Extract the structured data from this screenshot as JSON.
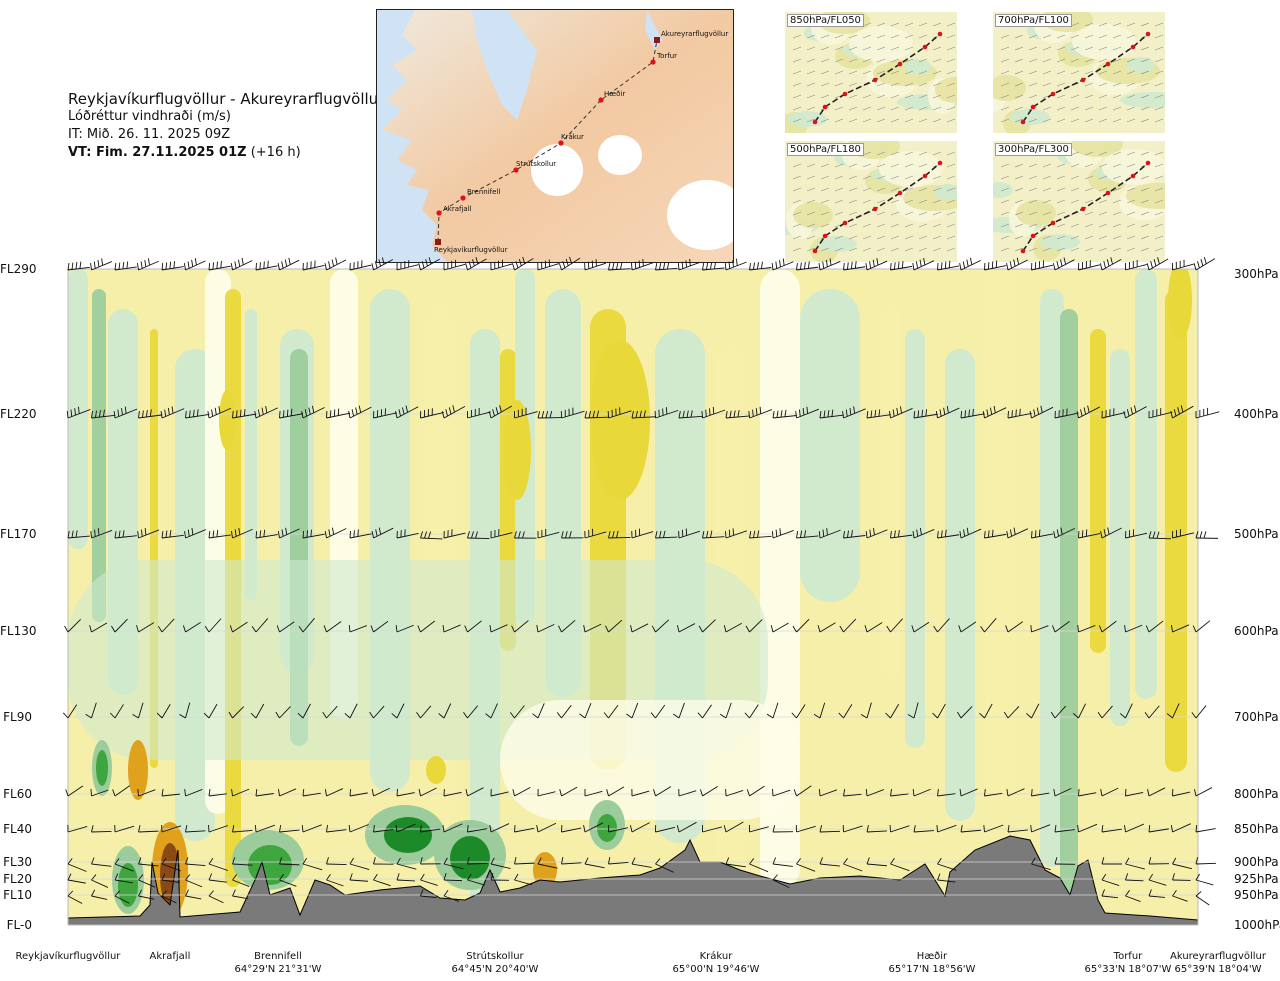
{
  "header": {
    "route": "Reykjavíkurflugvöllur - Akureyrarflugvöllur",
    "variable": "Lóðréttur vindhraði (m/s)",
    "it": "IT: Mið. 26. 11. 2025 09Z",
    "vt_bold": "VT: Fim. 27.11.2025 01Z",
    "vt_rest": " (+16 h)"
  },
  "map": {
    "route_points": [
      {
        "name": "Reykjavíkurflugvöllur"
      },
      {
        "name": "Akrafjall"
      },
      {
        "name": "Brennifell"
      },
      {
        "name": "Strútskollur"
      },
      {
        "name": "Krákur"
      },
      {
        "name": "Hæðir"
      },
      {
        "name": "Torfur"
      },
      {
        "name": "Akureyrarflugvöllur"
      }
    ]
  },
  "thumbnails": [
    {
      "label": "850hPa/FL050"
    },
    {
      "label": "700hPa/FL100"
    },
    {
      "label": "500hPa/FL180"
    },
    {
      "label": "300hPa/FL300"
    }
  ],
  "colors": {
    "strong_down": "#8a4a14",
    "down": "#e0a11c",
    "weak_down": "#e9d83a",
    "slight_down": "#f5efaa",
    "neutral": "#fdfde8",
    "slight_up": "#cfe9cf",
    "up": "#9ccc9c",
    "strong_up": "#3fa53f",
    "very_strong_up": "#1d8a2a",
    "terrain": "#7a7a7a"
  },
  "chart_data": {
    "type": "heatmap",
    "title": "Lóðréttur vindhraði (m/s)",
    "x_axis": {
      "locations": [
        {
          "name": "Reykjavíkurflugvöllur",
          "coord": ""
        },
        {
          "name": "Akrafjall",
          "coord": ""
        },
        {
          "name": "Brennifell",
          "coord": "64°29'N 21°31'W"
        },
        {
          "name": "Strútskollur",
          "coord": "64°45'N 20°40'W"
        },
        {
          "name": "Krákur",
          "coord": "65°00'N 19°46'W"
        },
        {
          "name": "Hæðir",
          "coord": "65°17'N 18°56'W"
        },
        {
          "name": "Torfur",
          "coord": "65°33'N 18°07'W"
        },
        {
          "name": "Akureyrarflugvöllur",
          "coord": "65°39'N 18°04'W"
        }
      ]
    },
    "y_axis_left": [
      "FL290",
      "FL220",
      "FL170",
      "FL130",
      "FL90",
      "FL60",
      "FL40",
      "FL30",
      "FL20",
      "FL10",
      "FL-0"
    ],
    "y_axis_right": [
      "300hPa",
      "400hPa",
      "500hPa",
      "600hPa",
      "700hPa",
      "800hPa",
      "850hPa",
      "900hPa",
      "925hPa",
      "950hPa",
      "1000hPa"
    ],
    "wind_barb_levels": [
      "300hPa",
      "400hPa",
      "500hPa",
      "600hPa",
      "700hPa",
      "800hPa",
      "850hPa",
      "900hPa",
      "925hPa",
      "950hPa"
    ],
    "terrain": "grey silhouette of the route profile, highest under Hæðir",
    "grid": true
  }
}
